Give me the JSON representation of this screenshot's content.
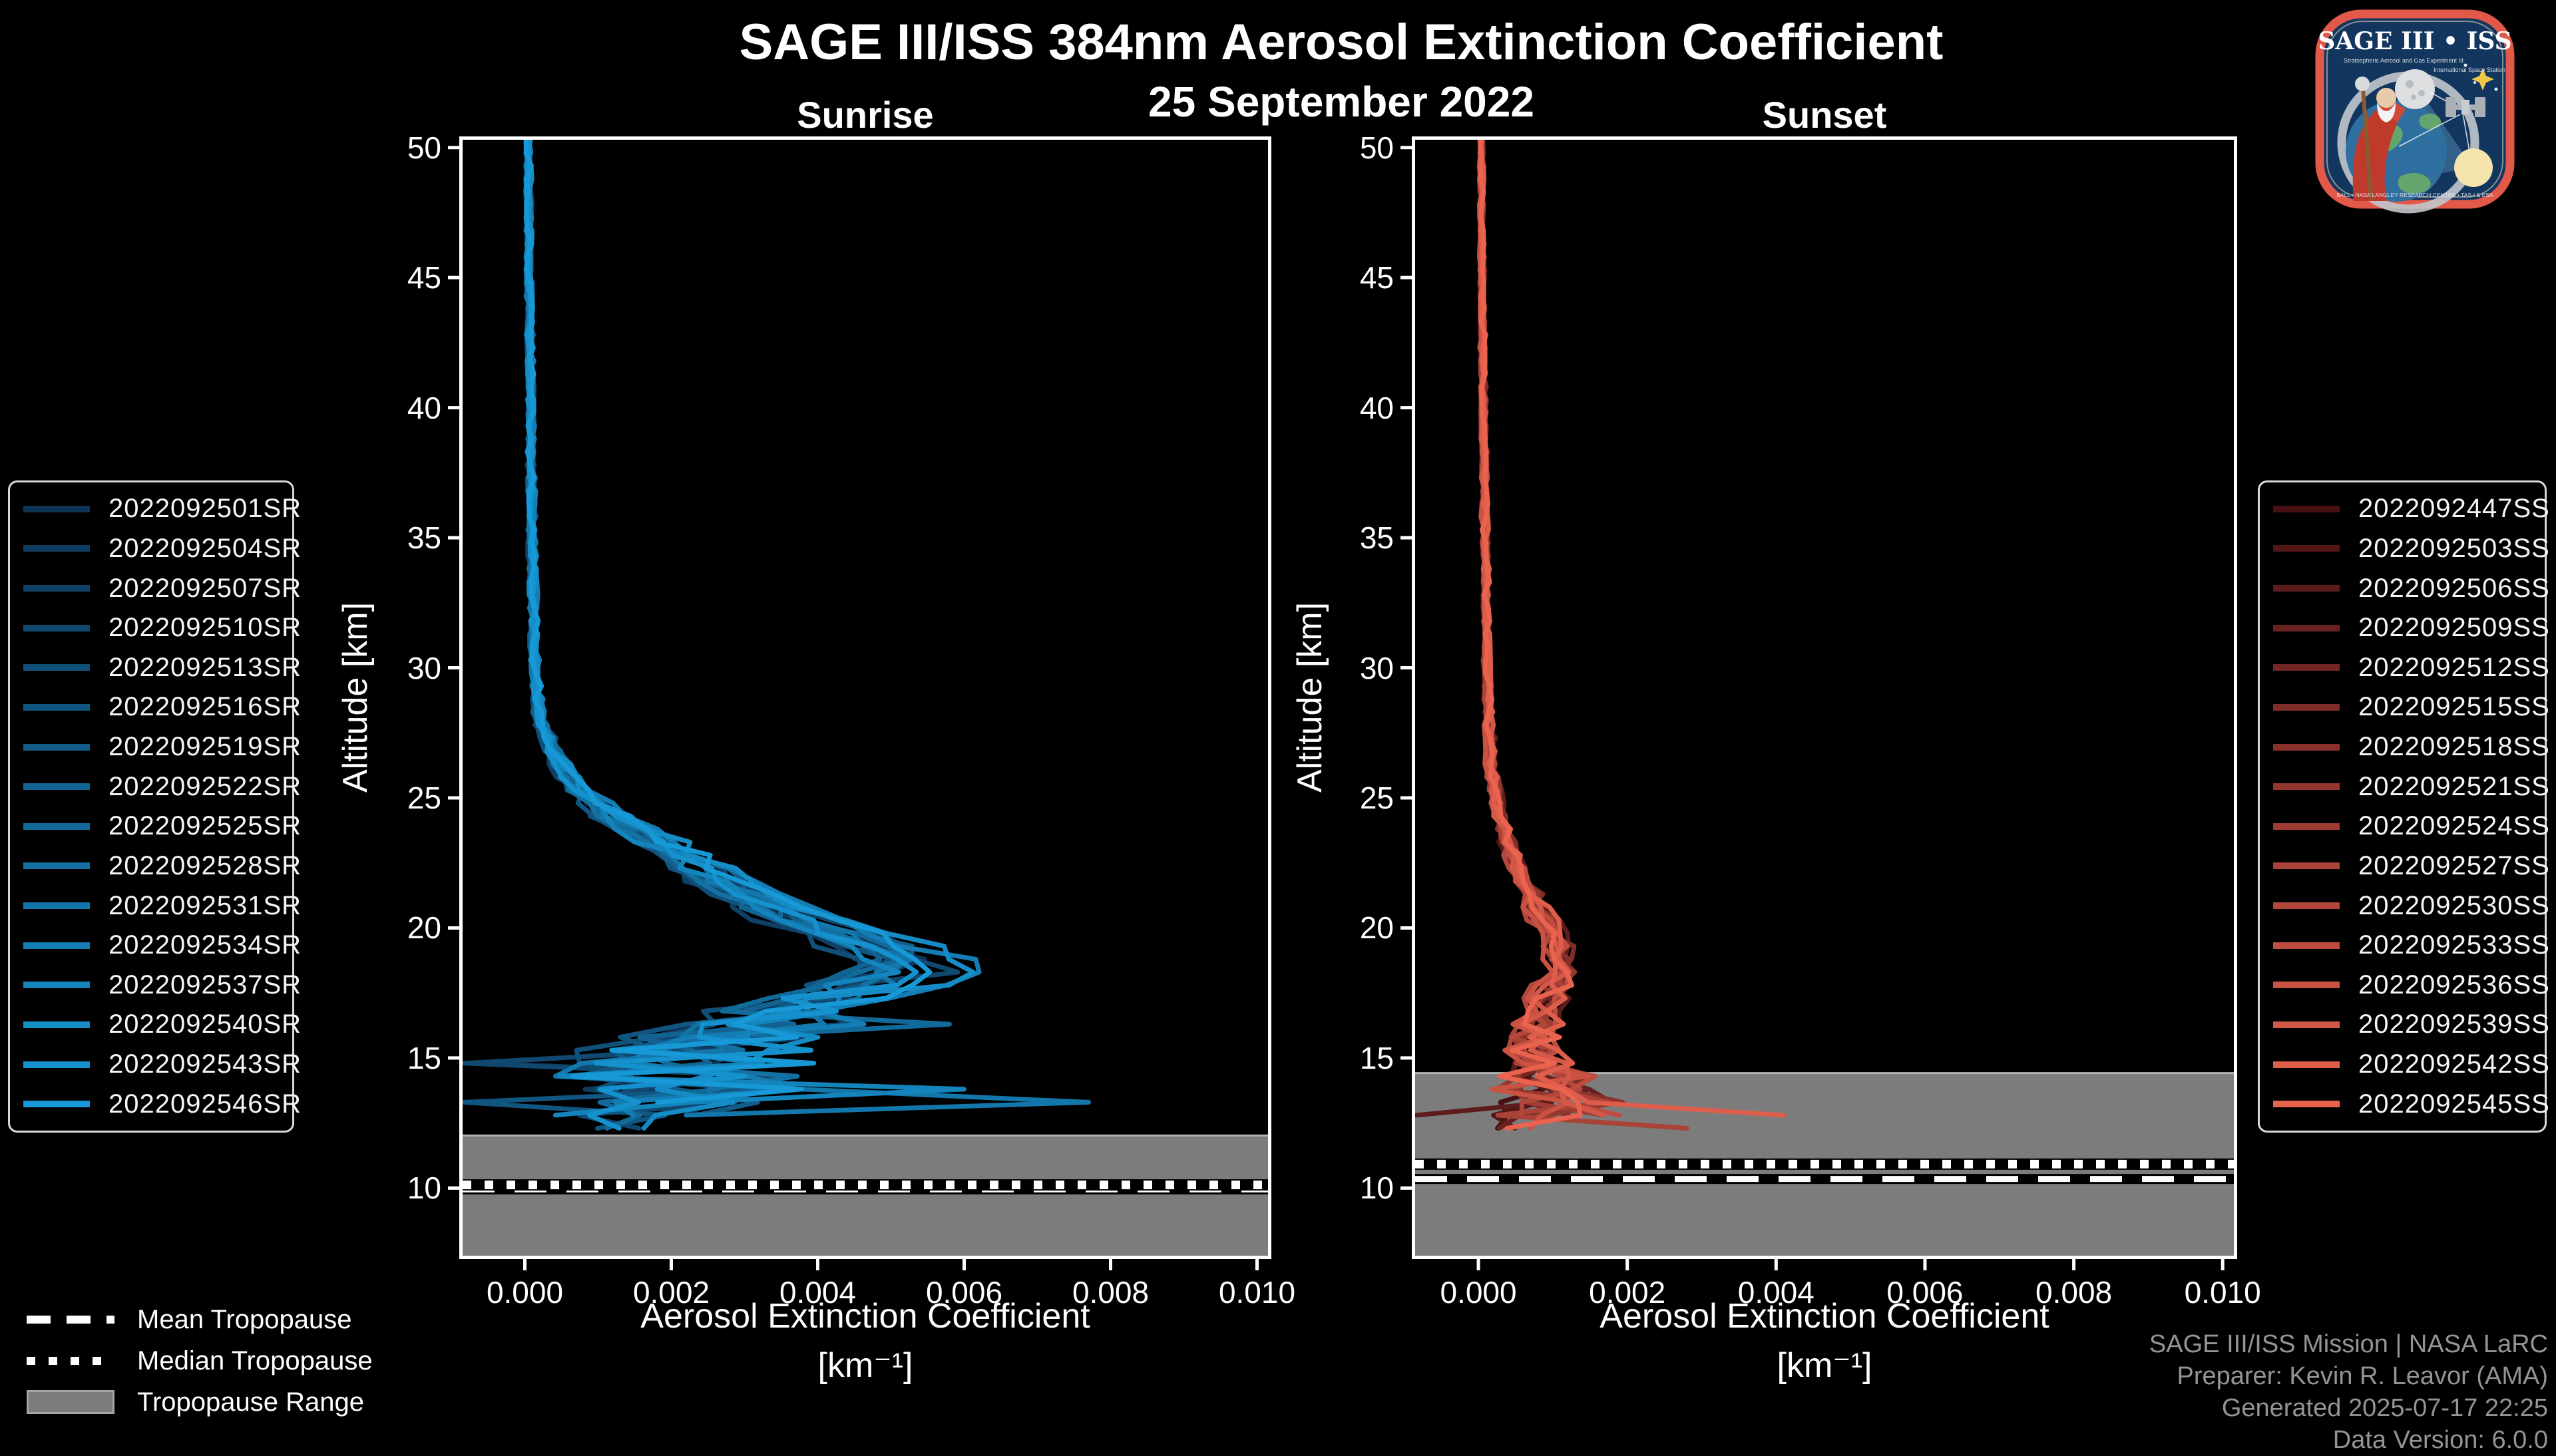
{
  "header": {
    "title": "SAGE III/ISS 384nm Aerosol Extinction Coefficient",
    "date": "25 September 2022"
  },
  "tropopause_legend": {
    "mean_label": "Mean Tropopause",
    "median_label": "Median Tropopause",
    "range_label": "Tropopause Range"
  },
  "credits": {
    "line1": "SAGE III/ISS Mission | NASA LaRC",
    "line2": "Preparer: Kevin R. Leavor (AMA)",
    "line3": "Generated 2025-07-17 22:25",
    "line4": "Data Version: 6.0.0"
  },
  "logo": {
    "title": "SAGE III • ISS",
    "sub1": "Stratospheric Aerosol and Gas Experiment III",
    "sub2": "International Space Station",
    "ring_text": "BALL • NASA LANGLEY RESEARCH CENTER • TAS-I & ESA",
    "border_color": "#e2594a",
    "field_color": "#12365e"
  },
  "chart_data": {
    "type": "line",
    "title": "SAGE III/ISS 384nm Aerosol Extinction Coefficient",
    "subtitle": "25 September 2022",
    "axes": {
      "x": {
        "label_line1": "Aerosol Extinction Coefficient",
        "label_line2": "[km⁻¹]",
        "ticks": [
          0.0,
          0.002,
          0.004,
          0.006,
          0.008,
          0.01
        ],
        "tick_labels": [
          "0.000",
          "0.002",
          "0.004",
          "0.006",
          "0.008",
          "0.010"
        ],
        "lim": [
          -0.00085,
          0.01015
        ]
      },
      "y": {
        "label": "Altitude [km]",
        "ticks": [
          10,
          15,
          20,
          25,
          30,
          35,
          40,
          45,
          50
        ],
        "tick_labels": [
          "10",
          "15",
          "20",
          "25",
          "30",
          "35",
          "40",
          "45",
          "50"
        ],
        "lim": [
          7.4,
          50.3
        ]
      },
      "grid": false
    },
    "style": {
      "background": "#000000",
      "spine_color": "#ffffff",
      "band_color": "#7c7c7c",
      "band_edge_color": "#b3b3b3",
      "tropopause_line_color": "#ffffff",
      "line_width": 7
    },
    "panels": [
      {
        "name": "Sunrise",
        "side": "left",
        "color_start": "#0e3456",
        "color_end": "#1699d6",
        "seed": 11,
        "series": [
          "2022092501SR",
          "2022092504SR",
          "2022092507SR",
          "2022092510SR",
          "2022092513SR",
          "2022092516SR",
          "2022092519SR",
          "2022092522SR",
          "2022092525SR",
          "2022092528SR",
          "2022092531SR",
          "2022092534SR",
          "2022092537SR",
          "2022092540SR",
          "2022092543SR",
          "2022092546SR"
        ],
        "tropopause": {
          "mean_km": 9.95,
          "median_km": 10.12,
          "band_top_km": 12.02
        },
        "base_profile": [
          [
            50,
            5e-05
          ],
          [
            45,
            6e-05
          ],
          [
            40,
            8e-05
          ],
          [
            35,
            0.0001
          ],
          [
            32,
            0.00012
          ],
          [
            30,
            0.00014
          ],
          [
            28.5,
            0.00018
          ],
          [
            27.5,
            0.00028
          ],
          [
            26.5,
            0.00045
          ],
          [
            25.5,
            0.0007
          ],
          [
            24.5,
            0.0011
          ],
          [
            23.5,
            0.0017
          ],
          [
            22.5,
            0.0023
          ],
          [
            21.5,
            0.0029
          ],
          [
            20.5,
            0.0036
          ],
          [
            19.8,
            0.0043
          ],
          [
            19.2,
            0.0049
          ],
          [
            18.7,
            0.0053
          ],
          [
            18.2,
            0.0051
          ],
          [
            17.6,
            0.0044
          ],
          [
            17.0,
            0.0037
          ],
          [
            16.4,
            0.0032
          ],
          [
            15.8,
            0.0028
          ],
          [
            15.2,
            0.0024
          ],
          [
            14.6,
            0.0021
          ],
          [
            14.0,
            0.0022
          ],
          [
            13.4,
            0.0024
          ],
          [
            12.9,
            0.0016
          ],
          [
            12.4,
            0.001
          ],
          [
            11.7,
            0.0008
          ]
        ],
        "noise_amp_profile": [
          [
            50,
            4e-05
          ],
          [
            30,
            6e-05
          ],
          [
            27,
            0.0001
          ],
          [
            24,
            0.0002
          ],
          [
            21,
            0.0003
          ],
          [
            19,
            0.0004
          ],
          [
            18,
            0.0006
          ],
          [
            17,
            0.0009
          ],
          [
            16,
            0.0013
          ],
          [
            15,
            0.0016
          ],
          [
            14,
            0.0018
          ],
          [
            13.5,
            0.0016
          ],
          [
            13,
            0.0012
          ],
          [
            12.4,
            0.0008
          ]
        ],
        "spikes": [
          {
            "series_index": 10,
            "alt_km": 13.5,
            "value": 0.0077
          },
          {
            "series_index": 12,
            "alt_km": 14.0,
            "value": 0.006
          },
          {
            "series_index": 8,
            "alt_km": 16.5,
            "value": 0.0058
          },
          {
            "series_index": 3,
            "alt_km": 14.6,
            "value": -0.00085
          },
          {
            "series_index": 5,
            "alt_km": 13.2,
            "value": -0.00085
          },
          {
            "series_index": 1,
            "alt_km": 15.0,
            "value": -0.0006
          }
        ],
        "bottom_alt_km": {
          "min": 11.8,
          "spread": 1.2
        }
      },
      {
        "name": "Sunset",
        "side": "right",
        "color_start": "#481013",
        "color_end": "#e9634f",
        "seed": 77,
        "series": [
          "2022092447SS",
          "2022092503SS",
          "2022092506SS",
          "2022092509SS",
          "2022092512SS",
          "2022092515SS",
          "2022092518SS",
          "2022092521SS",
          "2022092524SS",
          "2022092527SS",
          "2022092530SS",
          "2022092533SS",
          "2022092536SS",
          "2022092539SS",
          "2022092542SS",
          "2022092545SS"
        ],
        "tropopause": {
          "mean_km": 10.35,
          "median_km": 10.92,
          "band_top_km": 14.42
        },
        "base_profile": [
          [
            50,
            4e-05
          ],
          [
            45,
            5e-05
          ],
          [
            40,
            7e-05
          ],
          [
            35,
            9e-05
          ],
          [
            30,
            0.00012
          ],
          [
            28,
            0.00014
          ],
          [
            26,
            0.00018
          ],
          [
            24.5,
            0.00026
          ],
          [
            23.5,
            0.00036
          ],
          [
            22.5,
            0.0005
          ],
          [
            21.5,
            0.00066
          ],
          [
            20.5,
            0.00084
          ],
          [
            19.8,
            0.00096
          ],
          [
            19.2,
            0.00106
          ],
          [
            18.6,
            0.0011
          ],
          [
            18.0,
            0.00104
          ],
          [
            17.2,
            0.00092
          ],
          [
            16.4,
            0.00082
          ],
          [
            15.6,
            0.00078
          ],
          [
            14.8,
            0.00082
          ],
          [
            14.0,
            0.00092
          ],
          [
            13.4,
            0.00105
          ],
          [
            12.9,
            0.00108
          ],
          [
            12.4,
            0.0009
          ],
          [
            11.9,
            0.0007
          ]
        ],
        "noise_amp_profile": [
          [
            50,
            3e-05
          ],
          [
            30,
            5e-05
          ],
          [
            25,
            8e-05
          ],
          [
            22,
            0.0001
          ],
          [
            20,
            0.00015
          ],
          [
            18,
            0.0002
          ],
          [
            16,
            0.0003
          ],
          [
            15,
            0.0005
          ],
          [
            14,
            0.0008
          ],
          [
            13,
            0.0009
          ],
          [
            12.5,
            0.0007
          ],
          [
            11.9,
            0.0005
          ]
        ],
        "spikes": [
          {
            "series_index": 14,
            "alt_km": 13.0,
            "value": 0.0041
          },
          {
            "series_index": 9,
            "alt_km": 12.5,
            "value": 0.0028
          },
          {
            "series_index": 2,
            "alt_km": 12.6,
            "value": -0.0009
          }
        ],
        "bottom_alt_km": {
          "min": 11.9,
          "spread": 0.9
        }
      }
    ]
  }
}
